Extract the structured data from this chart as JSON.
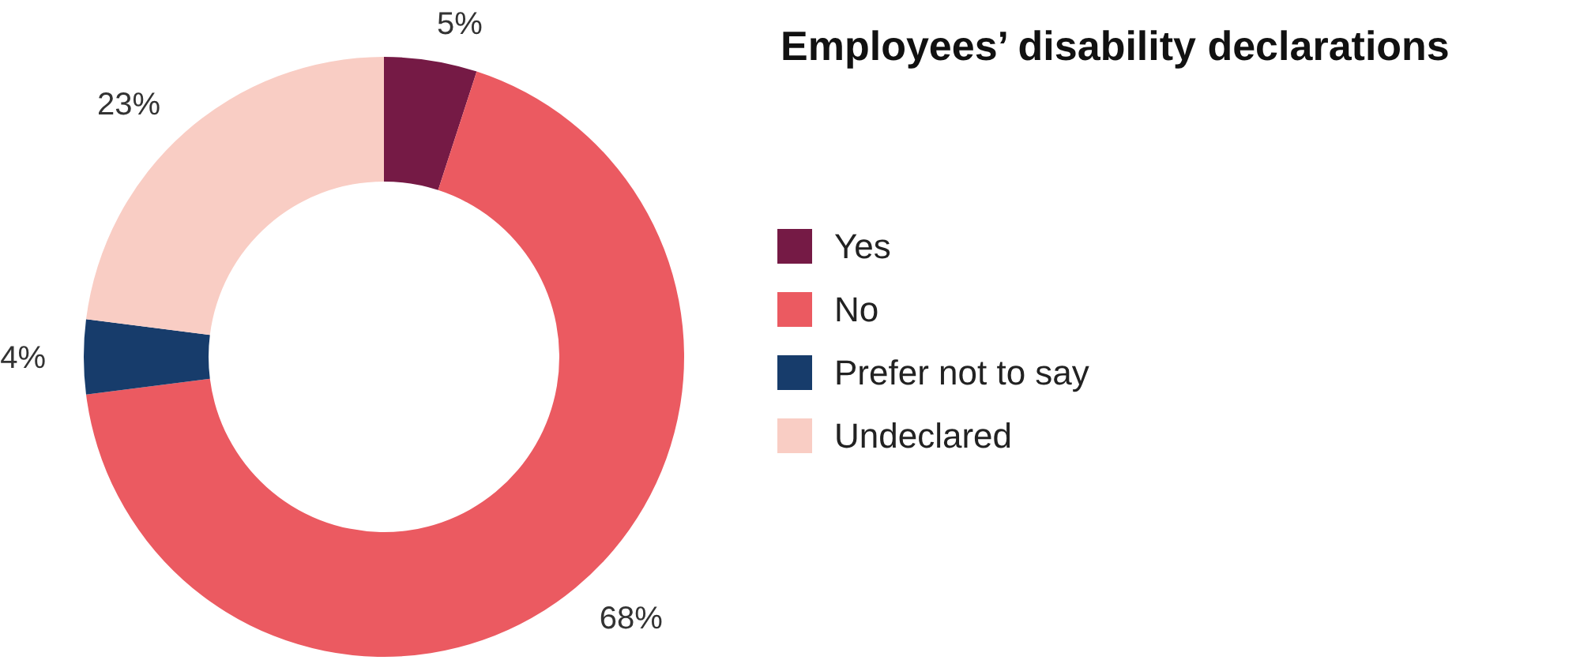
{
  "chart_data": {
    "type": "donut",
    "title": "Employees’ disability declarations",
    "categories": [
      "Yes",
      "No",
      "Prefer not to say",
      "Undeclared"
    ],
    "values": [
      5,
      68,
      4,
      23
    ],
    "colors": [
      "#751a45",
      "#eb5a61",
      "#173c6b",
      "#f9cdc4"
    ],
    "value_labels": [
      "5%",
      "68%",
      "4%",
      "23%"
    ],
    "legend": "right"
  }
}
